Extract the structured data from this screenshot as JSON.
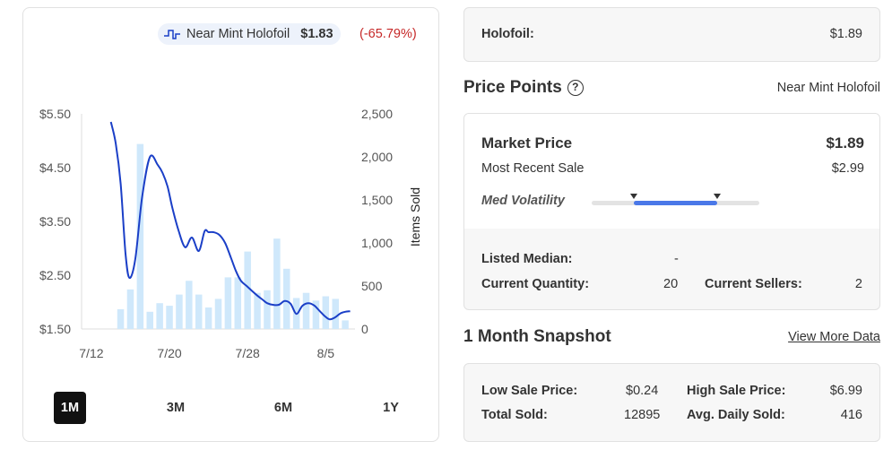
{
  "legend": {
    "name": "Near Mint Holofoil",
    "price": "$1.83",
    "change": "(-65.79%)",
    "line_color": "#1b3fc7",
    "bar_color": "#cfe8fb"
  },
  "range_tabs": [
    "1M",
    "3M",
    "6M",
    "1Y"
  ],
  "range_active": "1M",
  "chart_data": {
    "type": "line",
    "title": "",
    "ylabel_right": "Items Sold",
    "y_ticks_left": [
      "$5.50",
      "$4.50",
      "$3.50",
      "$2.50",
      "$1.50"
    ],
    "y_ticks_right": [
      "2,500",
      "2,000",
      "1,500",
      "1,000",
      "500",
      "0"
    ],
    "x_ticks": [
      "7/12",
      "7/20",
      "7/28",
      "8/5"
    ],
    "ylim_price": [
      1.5,
      5.5
    ],
    "ylim_volume": [
      0,
      2500
    ],
    "price_series": {
      "name": "Near Mint Holofoil",
      "x": [
        14.0,
        14.5,
        15.0,
        15.5,
        15.9,
        16.5,
        17.2,
        18.0,
        18.8,
        19.3,
        19.8,
        20.3,
        20.9,
        21.6,
        22.3,
        23.0,
        23.6,
        24.0,
        24.5,
        25.1,
        25.7,
        26.3,
        26.8,
        27.3,
        27.9,
        28.5,
        29.0,
        29.5,
        30.0,
        30.6,
        31.2,
        31.8,
        32.4,
        33.0,
        33.6,
        34.2,
        34.8,
        35.4,
        35.9,
        36.4,
        37.0,
        37.5,
        38.0,
        38.5
      ],
      "y": [
        5.35,
        4.95,
        4.2,
        2.9,
        2.45,
        2.8,
        3.95,
        4.7,
        4.55,
        4.4,
        4.15,
        3.75,
        3.35,
        3.02,
        3.2,
        2.95,
        3.32,
        3.3,
        3.3,
        3.25,
        3.1,
        2.82,
        2.58,
        2.4,
        2.3,
        2.2,
        2.12,
        2.05,
        1.98,
        1.95,
        1.95,
        2.02,
        1.97,
        1.78,
        1.93,
        1.98,
        1.94,
        1.83,
        1.74,
        1.68,
        1.72,
        1.79,
        1.82,
        1.83
      ]
    },
    "volume_series": {
      "name": "Items Sold",
      "x": [
        15,
        16,
        17,
        18,
        19,
        20,
        21,
        22,
        23,
        24,
        25,
        26,
        27,
        28,
        29,
        30,
        31,
        32,
        33,
        34,
        35,
        36,
        37,
        38
      ],
      "values": [
        230,
        460,
        2150,
        200,
        300,
        270,
        400,
        560,
        400,
        250,
        350,
        600,
        600,
        900,
        420,
        450,
        1050,
        700,
        360,
        420,
        330,
        380,
        350,
        100
      ]
    },
    "grid": false
  },
  "summary": {
    "holofoil_label": "Holofoil:",
    "holofoil_value": "$1.89"
  },
  "price_points": {
    "title": "Price Points",
    "help_glyph": "?",
    "variant": "Near Mint Holofoil",
    "market_price_label": "Market Price",
    "market_price_value": "$1.89",
    "recent_sale_label": "Most Recent Sale",
    "recent_sale_value": "$2.99",
    "volatility_label": "Med Volatility",
    "volatility_range": [
      0.25,
      0.75
    ],
    "listed_median_label": "Listed Median:",
    "listed_median_value": "-",
    "current_quantity_label": "Current Quantity:",
    "current_quantity_value": "20",
    "current_sellers_label": "Current Sellers:",
    "current_sellers_value": "2"
  },
  "snapshot": {
    "title": "1 Month Snapshot",
    "view_more": "View More Data",
    "low_sale_label": "Low Sale Price:",
    "low_sale_value": "$0.24",
    "high_sale_label": "High Sale Price:",
    "high_sale_value": "$6.99",
    "total_sold_label": "Total Sold:",
    "total_sold_value": "12895",
    "avg_daily_label": "Avg. Daily Sold:",
    "avg_daily_value": "416"
  }
}
